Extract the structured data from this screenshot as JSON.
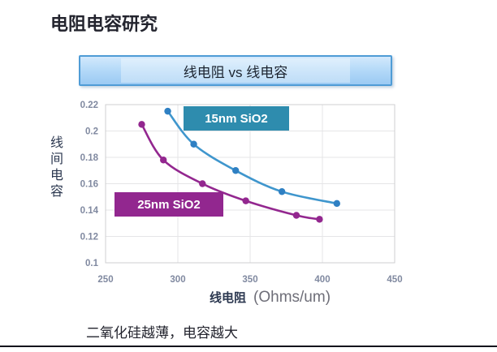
{
  "slide": {
    "title": "电阻电容研究",
    "banner": "线电阻 vs 线电容",
    "caption": "二氧化硅越薄，电容越大"
  },
  "chart_data": {
    "type": "scatter",
    "title": "线电阻 vs 线电容",
    "xlabel_cn": "线电阻",
    "xlabel_unit": "(Ohms/um)",
    "ylabel": "线间电容",
    "xlim": [
      250,
      450
    ],
    "ylim": [
      0.1,
      0.22
    ],
    "x_ticks": [
      "250",
      "300",
      "350",
      "400",
      "450"
    ],
    "y_ticks": [
      "0.22",
      "0.2",
      "0.18",
      "0.16",
      "0.14",
      "0.12",
      "0.1"
    ],
    "grid": true,
    "legend_position": "inline-label-boxes",
    "series": [
      {
        "name": "15nm SiO2",
        "line_color": "#3f96cd",
        "point_color": "#2f80c3",
        "label_bg": "#2e8cae",
        "label_text_color": "#ffffff",
        "points": [
          [
            293,
            0.215
          ],
          [
            311,
            0.19
          ],
          [
            340,
            0.17
          ],
          [
            372,
            0.154
          ],
          [
            410,
            0.145
          ]
        ]
      },
      {
        "name": "25nm SiO2",
        "line_color": "#93278f",
        "point_color": "#93278f",
        "label_bg": "#92278f",
        "label_text_color": "#ffffff",
        "points": [
          [
            275,
            0.205
          ],
          [
            290,
            0.178
          ],
          [
            317,
            0.16
          ],
          [
            347,
            0.147
          ],
          [
            382,
            0.136
          ],
          [
            398,
            0.133
          ]
        ]
      }
    ],
    "colors": {
      "grid": "#e5e5e7",
      "plot_border": "#cfcfd2",
      "tick_text": "#8089a0",
      "banner_border": "#4f9cd6",
      "bottom_rule": "#14141c"
    }
  }
}
